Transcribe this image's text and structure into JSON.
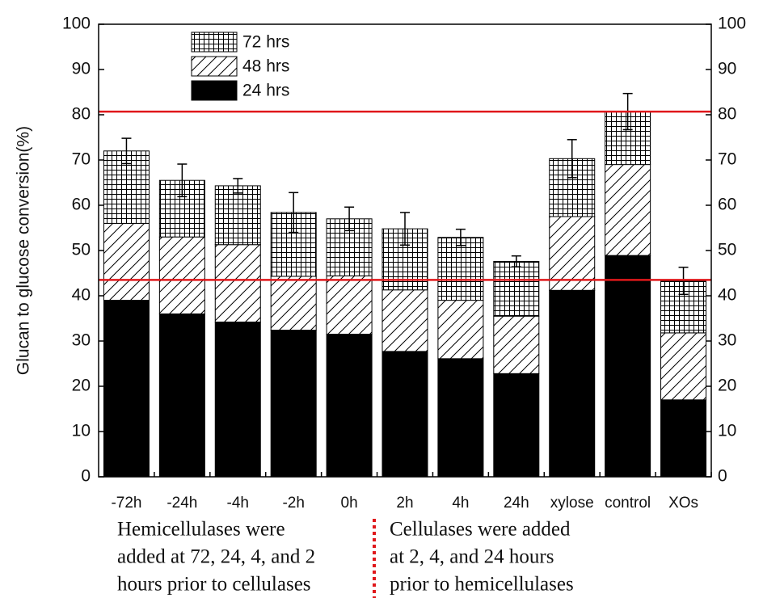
{
  "chart_data": {
    "type": "stacked_bar",
    "ylabel": "Glucan to glucose conversion(%)",
    "categories": [
      "-72h",
      "-24h",
      "-4h",
      "-2h",
      "0h",
      "2h",
      "4h",
      "24h",
      "xylose",
      "control",
      "XOs"
    ],
    "series": [
      {
        "name": "24 hrs",
        "color": "#000000",
        "pattern": "solid",
        "values": [
          39,
          36,
          34.2,
          32.4,
          31.5,
          27.7,
          26.1,
          22.8,
          41.2,
          48.9,
          17
        ]
      },
      {
        "name": "48 hrs",
        "color": "#000000",
        "pattern": "hatch",
        "values": [
          17,
          17,
          17.1,
          11.9,
          12.9,
          13.6,
          12.9,
          12.7,
          16.3,
          20.1,
          14.8
        ]
      },
      {
        "name": "72 hrs",
        "color": "#000000",
        "pattern": "grid",
        "values": [
          16,
          12.5,
          13,
          14.1,
          12.6,
          13.5,
          13.9,
          12.1,
          12.8,
          11.7,
          11.5
        ],
        "errors": [
          2.8,
          3.6,
          1.6,
          4.4,
          2.6,
          3.6,
          1.8,
          1.2,
          4.2,
          4,
          3
        ]
      }
    ],
    "ylim": [
      0,
      100
    ],
    "yticks": [
      0,
      10,
      20,
      30,
      40,
      50,
      60,
      70,
      80,
      90,
      100
    ],
    "y2lim": [
      0,
      100
    ],
    "y2ticks": [
      0,
      10,
      20,
      30,
      40,
      50,
      60,
      70,
      80,
      90,
      100
    ],
    "reference_lines": [
      80.7,
      43.5
    ],
    "reference_color": "#e0181b",
    "legend": "upper left",
    "annotations": [
      {
        "lines": [
          "Hemicellulases were",
          "added at 72, 24, 4, and 2",
          "hours prior to cellulases"
        ]
      },
      {
        "lines": [
          "Cellulases were added",
          "at 2, 4, and 24 hours",
          "prior to hemicellulases"
        ]
      }
    ]
  }
}
